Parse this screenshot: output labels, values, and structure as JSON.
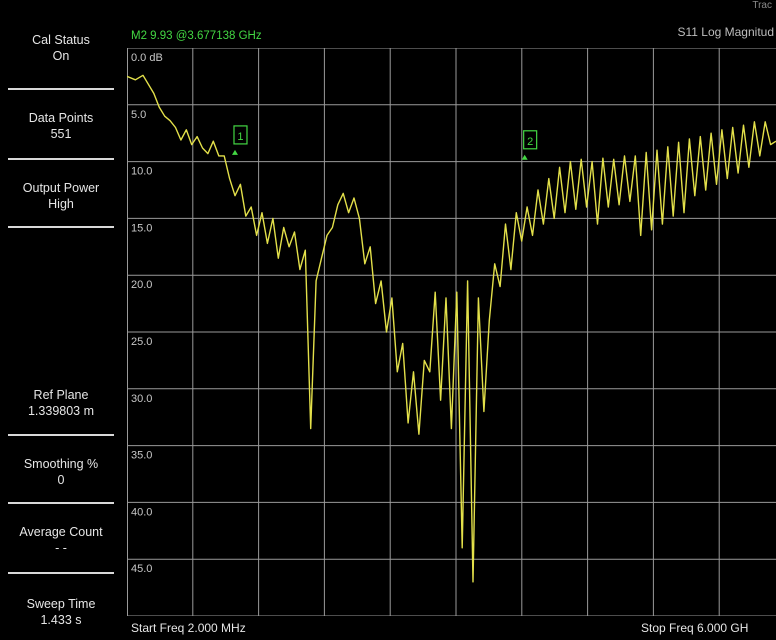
{
  "sidebar": {
    "keys": [
      {
        "label": "Cal Status",
        "value": "On"
      },
      {
        "label": "Data Points",
        "value": "551"
      },
      {
        "label": "Output Power",
        "value": "High"
      },
      {
        "label": "Ref Plane",
        "value": "1.339803 m"
      },
      {
        "label": "Smoothing %",
        "value": "0"
      },
      {
        "label": "Average Count",
        "value": "- -"
      },
      {
        "label": "Sweep Time",
        "value": "1.433 s"
      }
    ]
  },
  "header": {
    "marker_readout": "M2 9.93 @3.677138 GHz",
    "trace_title": "S11 Log Magnitud",
    "trace_tab": "Trac"
  },
  "footer": {
    "start_freq": "Start Freq 2.000 MHz",
    "stop_freq": "Stop Freq 6.000 GH"
  },
  "colors": {
    "trace": "#e3e04a",
    "grid": "#9a9a9a",
    "marker": "#43d743",
    "background": "#000000"
  },
  "chart_data": {
    "type": "line",
    "title": "S11 Log Magnitud",
    "xlabel": "",
    "ylabel": "",
    "x_unit": "GHz",
    "x_start": 0.002,
    "x_stop": 6.0,
    "xlim": [
      0.002,
      6.0
    ],
    "ylim": [
      0,
      50
    ],
    "y_inverted": true,
    "y_tick_labels": [
      "0.0 dB",
      "5.0",
      "10.0",
      "15.0",
      "20.0",
      "25.0",
      "30.0",
      "35.0",
      "40.0",
      "45.0"
    ],
    "grid": true,
    "markers": [
      {
        "label": "1",
        "x": 1.0,
        "y": 9.5
      },
      {
        "label": "2",
        "x": 3.677138,
        "y": 9.93
      }
    ],
    "series": [
      {
        "x": [
          0.002,
          0.08,
          0.15,
          0.25,
          0.3,
          0.35,
          0.4,
          0.45,
          0.5,
          0.55,
          0.6,
          0.65,
          0.7,
          0.75,
          0.8,
          0.85,
          0.9,
          0.95,
          1.0,
          1.05,
          1.1,
          1.15,
          1.2,
          1.25,
          1.3,
          1.35,
          1.4,
          1.45,
          1.5,
          1.55,
          1.6,
          1.65,
          1.7,
          1.75,
          1.8,
          1.85,
          1.9,
          1.95,
          2.0,
          2.05,
          2.1,
          2.15,
          2.2,
          2.25,
          2.3,
          2.35,
          2.4,
          2.45,
          2.5,
          2.55,
          2.6,
          2.65,
          2.7,
          2.75,
          2.8,
          2.85,
          2.9,
          2.95,
          3.0,
          3.05,
          3.1,
          3.15,
          3.2,
          3.25,
          3.3,
          3.35,
          3.4,
          3.45,
          3.5,
          3.55,
          3.6,
          3.65,
          3.7,
          3.75,
          3.8,
          3.85,
          3.9,
          3.95,
          4.0,
          4.05,
          4.1,
          4.15,
          4.2,
          4.25,
          4.3,
          4.35,
          4.4,
          4.45,
          4.5,
          4.55,
          4.6,
          4.65,
          4.7,
          4.75,
          4.8,
          4.85,
          4.9,
          4.95,
          5.0,
          5.05,
          5.1,
          5.15,
          5.2,
          5.25,
          5.3,
          5.35,
          5.4,
          5.45,
          5.5,
          5.55,
          5.6,
          5.65,
          5.7,
          5.75,
          5.8,
          5.85,
          5.9,
          5.95,
          6.0
        ],
        "y": [
          2.5,
          2.8,
          2.4,
          4.0,
          5.2,
          6.0,
          6.4,
          7.0,
          8.1,
          7.2,
          8.5,
          7.8,
          8.8,
          9.3,
          8.2,
          9.5,
          9.5,
          11.5,
          13.0,
          12.0,
          14.8,
          14.0,
          16.5,
          14.5,
          17.2,
          15.0,
          18.5,
          15.8,
          17.5,
          16.2,
          19.5,
          17.8,
          33.5,
          20.5,
          18.5,
          16.5,
          15.8,
          13.8,
          12.8,
          14.5,
          13.2,
          15.0,
          19.0,
          17.5,
          22.5,
          20.5,
          25.0,
          22.0,
          28.5,
          26.0,
          33.0,
          28.5,
          34.0,
          27.5,
          28.5,
          21.5,
          31.0,
          22.0,
          33.5,
          21.5,
          44.0,
          20.5,
          47.0,
          22.0,
          32.0,
          24.0,
          19.0,
          21.0,
          15.5,
          19.5,
          14.5,
          17.0,
          14.0,
          16.5,
          12.5,
          15.5,
          11.5,
          15.0,
          10.5,
          14.5,
          10.0,
          14.2,
          9.8,
          14.0,
          10.0,
          15.5,
          9.7,
          14.0,
          9.8,
          13.8,
          9.5,
          13.5,
          9.5,
          16.5,
          9.2,
          16.0,
          9.0,
          15.5,
          8.7,
          14.8,
          8.3,
          14.5,
          8.0,
          13.0,
          7.8,
          12.5,
          7.5,
          12.0,
          7.2,
          11.5,
          7.0,
          11.0,
          6.8,
          10.5,
          6.5,
          9.5,
          6.5,
          8.5,
          8.2
        ]
      }
    ]
  }
}
